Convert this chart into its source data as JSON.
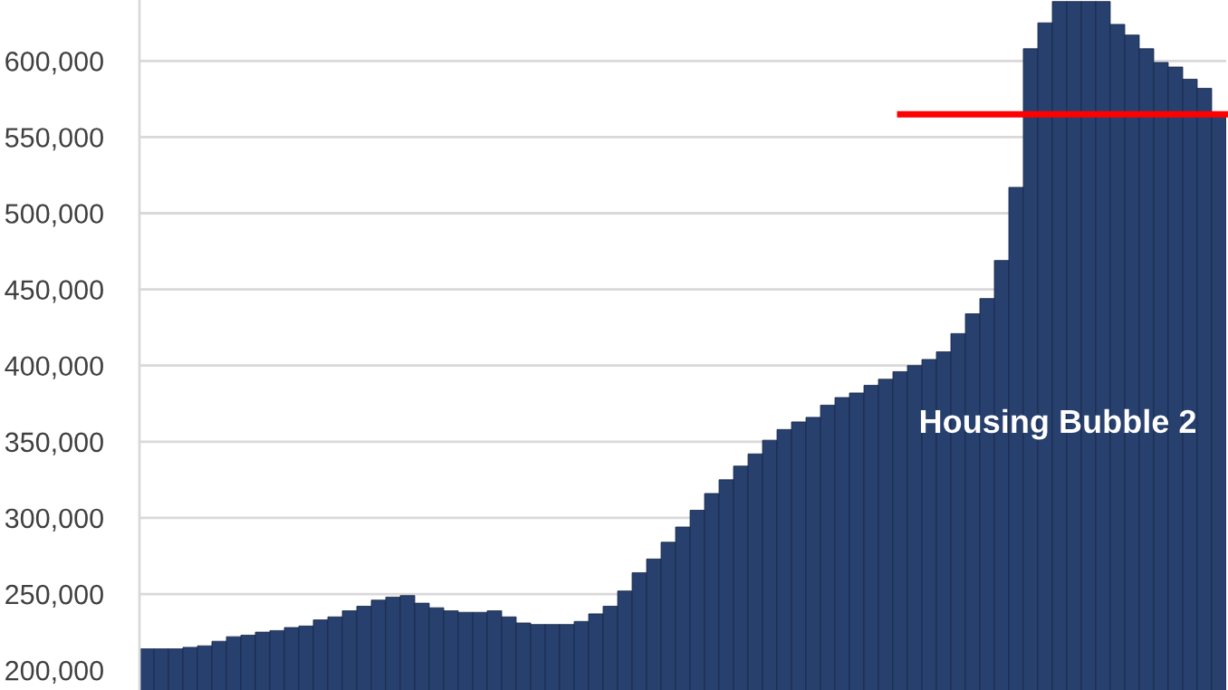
{
  "chart_data": {
    "type": "bar",
    "categories": [
      null,
      null,
      null,
      null,
      null,
      null,
      null,
      null,
      null,
      null,
      null,
      null,
      null,
      null,
      null,
      null,
      null,
      null,
      null,
      null,
      null,
      null,
      null,
      null,
      null,
      null,
      null,
      null,
      null,
      null,
      null,
      null,
      null,
      null,
      null,
      null,
      null,
      null,
      null,
      null,
      null,
      null,
      null,
      null,
      null,
      null,
      null,
      null,
      null,
      null,
      null,
      null,
      null,
      null,
      null,
      null,
      null,
      null,
      null,
      null,
      null,
      null,
      null,
      null,
      null,
      null,
      null,
      null,
      null,
      null,
      null,
      null,
      null,
      null,
      null
    ],
    "values": [
      214000,
      214000,
      214000,
      215000,
      216000,
      219000,
      222000,
      223000,
      225000,
      226000,
      228000,
      229000,
      233000,
      235000,
      239000,
      242000,
      246000,
      248000,
      249000,
      244000,
      241000,
      239000,
      238000,
      238000,
      239000,
      235000,
      231000,
      230000,
      230000,
      230000,
      232000,
      237000,
      242000,
      252000,
      264000,
      273000,
      284000,
      294000,
      305000,
      316000,
      325000,
      334000,
      342000,
      351000,
      358000,
      363000,
      366000,
      374000,
      379000,
      382000,
      387000,
      391000,
      396000,
      400000,
      404000,
      409000,
      421000,
      434000,
      444000,
      469000,
      517000,
      608000,
      625000,
      639000,
      639000,
      639000,
      639000,
      624000,
      617000,
      608000,
      599000,
      596000,
      588000,
      582000,
      566000
    ],
    "color": "#27406e",
    "ylim": [
      187000,
      640000
    ],
    "yticks": [
      {
        "value": 200000,
        "label": "200,000"
      },
      {
        "value": 250000,
        "label": "250,000"
      },
      {
        "value": 300000,
        "label": "300,000"
      },
      {
        "value": 350000,
        "label": "350,000"
      },
      {
        "value": 400000,
        "label": "400,000"
      },
      {
        "value": 450000,
        "label": "450,000"
      },
      {
        "value": 500000,
        "label": "500,000"
      },
      {
        "value": 550000,
        "label": "550,000"
      },
      {
        "value": 600000,
        "label": "600,000"
      }
    ],
    "grid": "y",
    "tick_labels": "y",
    "ref_lines": [
      {
        "axis": "y",
        "value": 565000,
        "color": "#ff0000"
      }
    ],
    "annotations": [
      "Housing Bubble 2"
    ]
  }
}
